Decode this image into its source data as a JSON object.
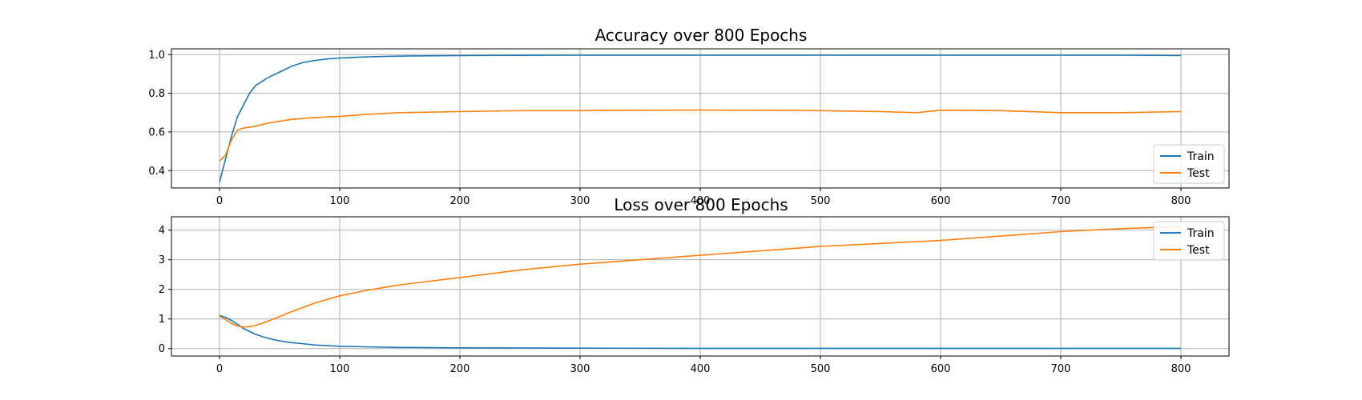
{
  "chart_data": [
    {
      "type": "line",
      "title": "Accuracy over 800 Epochs",
      "xlabel": "",
      "ylabel": "",
      "xlim": [
        -40,
        840
      ],
      "ylim": [
        0.31,
        1.03
      ],
      "xticks": [
        0,
        100,
        200,
        300,
        400,
        500,
        600,
        700,
        800
      ],
      "yticks": [
        0.4,
        0.6,
        0.8,
        1.0
      ],
      "ytick_labels": [
        "0.4",
        "0.6",
        "0.8",
        "1.0"
      ],
      "grid": true,
      "legend": "lower-right",
      "series": [
        {
          "name": "Train",
          "color": "#1f77b4",
          "x": [
            0,
            5,
            10,
            15,
            20,
            25,
            30,
            40,
            50,
            60,
            70,
            80,
            90,
            100,
            120,
            140,
            160,
            180,
            200,
            250,
            300,
            350,
            400,
            450,
            500,
            550,
            600,
            650,
            700,
            750,
            800
          ],
          "y": [
            0.34,
            0.46,
            0.58,
            0.68,
            0.74,
            0.8,
            0.84,
            0.88,
            0.91,
            0.94,
            0.96,
            0.97,
            0.978,
            0.982,
            0.988,
            0.991,
            0.993,
            0.994,
            0.995,
            0.996,
            0.997,
            0.997,
            0.997,
            0.997,
            0.997,
            0.997,
            0.997,
            0.997,
            0.997,
            0.997,
            0.995
          ]
        },
        {
          "name": "Test",
          "color": "#ff7f0e",
          "x": [
            0,
            5,
            10,
            15,
            20,
            30,
            40,
            50,
            60,
            80,
            100,
            120,
            150,
            200,
            250,
            300,
            350,
            400,
            450,
            500,
            550,
            580,
            600,
            650,
            700,
            750,
            800
          ],
          "y": [
            0.45,
            0.48,
            0.56,
            0.61,
            0.62,
            0.63,
            0.645,
            0.655,
            0.665,
            0.675,
            0.68,
            0.69,
            0.7,
            0.705,
            0.71,
            0.71,
            0.712,
            0.713,
            0.712,
            0.71,
            0.705,
            0.7,
            0.712,
            0.71,
            0.7,
            0.7,
            0.705
          ]
        }
      ]
    },
    {
      "type": "line",
      "title": "Loss over 800 Epochs",
      "xlabel": "",
      "ylabel": "",
      "xlim": [
        -40,
        840
      ],
      "ylim": [
        -0.25,
        4.45
      ],
      "xticks": [
        0,
        100,
        200,
        300,
        400,
        500,
        600,
        700,
        800
      ],
      "yticks": [
        0,
        1,
        2,
        3,
        4
      ],
      "ytick_labels": [
        "0",
        "1",
        "2",
        "3",
        "4"
      ],
      "grid": true,
      "legend": "upper-right",
      "series": [
        {
          "name": "Train",
          "color": "#1f77b4",
          "x": [
            0,
            5,
            10,
            15,
            20,
            30,
            40,
            50,
            60,
            80,
            100,
            120,
            150,
            200,
            300,
            400,
            500,
            600,
            700,
            800
          ],
          "y": [
            1.12,
            1.05,
            0.95,
            0.82,
            0.68,
            0.48,
            0.35,
            0.26,
            0.2,
            0.12,
            0.08,
            0.06,
            0.04,
            0.025,
            0.015,
            0.01,
            0.01,
            0.01,
            0.01,
            0.01
          ]
        },
        {
          "name": "Test",
          "color": "#ff7f0e",
          "x": [
            0,
            5,
            10,
            15,
            20,
            25,
            30,
            40,
            50,
            60,
            80,
            100,
            120,
            150,
            200,
            250,
            300,
            350,
            400,
            450,
            500,
            550,
            600,
            650,
            700,
            750,
            800
          ],
          "y": [
            1.1,
            0.98,
            0.85,
            0.76,
            0.73,
            0.74,
            0.78,
            0.92,
            1.08,
            1.25,
            1.55,
            1.78,
            1.95,
            2.15,
            2.4,
            2.65,
            2.85,
            3.0,
            3.15,
            3.3,
            3.45,
            3.55,
            3.65,
            3.8,
            3.95,
            4.05,
            4.12
          ]
        }
      ]
    }
  ]
}
